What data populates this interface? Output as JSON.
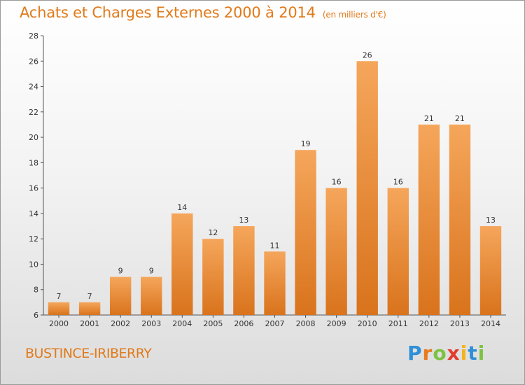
{
  "header": {
    "title": "Achats et Charges Externes 2000 à 2014",
    "unit": "(en milliers d'€)"
  },
  "footer": {
    "location": "BUSTINCE-IRIBERRY",
    "logo_letters": [
      "P",
      "r",
      "o",
      "x",
      "i",
      "t",
      "i"
    ]
  },
  "colors": {
    "accent": "#e07a1a",
    "bar_light": "#f5a65b",
    "bar_dark": "#d9731c"
  },
  "chart_data": {
    "type": "bar",
    "title": "Achats et Charges Externes 2000 à 2014",
    "subtitle": "(en milliers d'€)",
    "xlabel": "",
    "ylabel": "",
    "categories": [
      "2000",
      "2001",
      "2002",
      "2003",
      "2004",
      "2005",
      "2006",
      "2007",
      "2008",
      "2009",
      "2010",
      "2011",
      "2012",
      "2013",
      "2014"
    ],
    "values": [
      7,
      7,
      9,
      9,
      14,
      12,
      13,
      11,
      19,
      16,
      26,
      16,
      21,
      21,
      13
    ],
    "ylim": [
      6,
      28
    ],
    "yticks": [
      6,
      8,
      10,
      12,
      14,
      16,
      18,
      20,
      22,
      24,
      26,
      28
    ],
    "grid": false,
    "legend": "none",
    "data_labels": true
  }
}
